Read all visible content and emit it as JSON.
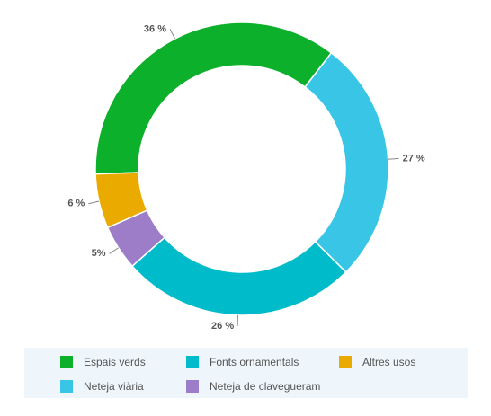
{
  "chart_data": {
    "type": "pie",
    "categories": [
      "Espais verds",
      "Neteja viària",
      "Fonts ornamentals",
      "Neteja de clavegueram",
      "Altres usos"
    ],
    "values": [
      36,
      27,
      26,
      5,
      6
    ],
    "value_labels": [
      "36 %",
      "27 %",
      "26 %",
      "5%",
      "6 %"
    ],
    "colors": [
      "#0db02b",
      "#38c5e6",
      "#00bccb",
      "#9d7dc8",
      "#ebaa00"
    ]
  }
}
